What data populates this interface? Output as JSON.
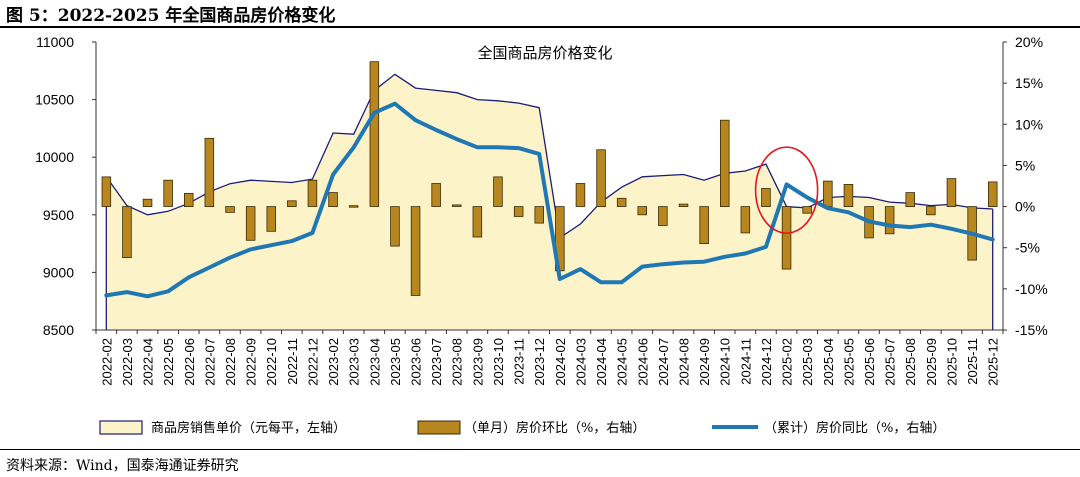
{
  "figure_title": "图 5：2022-2025 年全国商品房价格变化",
  "source": "资料来源：Wind，国泰海通证券研究",
  "colors": {
    "area_fill": "#fdf3c9",
    "area_line": "#1c1c78",
    "bar_fill": "#b8861f",
    "bar_stroke": "#3a2a05",
    "line": "#1f77b4",
    "highlight": "#e8141c"
  },
  "chart_data": {
    "type": "combo",
    "title": "全国商品房价格变化",
    "categories": [
      "2022-02",
      "2022-03",
      "2022-04",
      "2022-05",
      "2022-06",
      "2022-07",
      "2022-08",
      "2022-09",
      "2022-10",
      "2022-11",
      "2022-12",
      "2023-02",
      "2023-03",
      "2023-04",
      "2023-05",
      "2023-06",
      "2023-07",
      "2023-08",
      "2023-09",
      "2023-10",
      "2023-11",
      "2023-12",
      "2024-02",
      "2024-03",
      "2024-04",
      "2024-05",
      "2024-06",
      "2024-07",
      "2024-08",
      "2024-09",
      "2024-10",
      "2024-11",
      "2024-12",
      "2025-02",
      "2025-03",
      "2025-04",
      "2025-05",
      "2025-06",
      "2025-07",
      "2025-08",
      "2025-09",
      "2025-10",
      "2025-11",
      "2025-12"
    ],
    "left_axis": {
      "min": 8500,
      "max": 11000,
      "step": 500,
      "tick_labels": [
        "8500",
        "9000",
        "9500",
        "10000",
        "10500",
        "11000"
      ]
    },
    "right_axis": {
      "min": -15,
      "max": 20,
      "step": 5,
      "tick_labels": [
        "-15%",
        "-10%",
        "-5%",
        "0%",
        "5%",
        "10%",
        "15%",
        "20%"
      ]
    },
    "series": [
      {
        "name": "商品房销售单价（元每平，左轴）",
        "type": "area",
        "axis": "left",
        "values": [
          9830,
          9580,
          9500,
          9530,
          9600,
          9700,
          9770,
          9800,
          9790,
          9780,
          9810,
          10210,
          10200,
          10580,
          10720,
          10600,
          10580,
          10560,
          10500,
          10490,
          10470,
          10430,
          9300,
          9420,
          9610,
          9740,
          9830,
          9840,
          9850,
          9800,
          9860,
          9880,
          9940,
          9570,
          9560,
          9650,
          9660,
          9650,
          9610,
          9600,
          9580,
          9590,
          9560,
          9550
        ]
      },
      {
        "name": "（单月）房价环比（%，右轴）",
        "type": "bar",
        "axis": "right",
        "values": [
          3.6,
          -6.2,
          0.9,
          3.2,
          1.6,
          8.3,
          -0.7,
          -4.1,
          -3.0,
          0.7,
          3.2,
          1.7,
          0.1,
          17.6,
          -4.8,
          -10.8,
          2.8,
          0.2,
          -3.7,
          3.6,
          -1.2,
          -2.0,
          -7.8,
          2.8,
          6.9,
          1.0,
          -1.0,
          -2.3,
          0.3,
          -4.5,
          10.5,
          -3.2,
          2.2,
          -7.6,
          -0.8,
          3.1,
          2.7,
          -3.8,
          -3.3,
          1.7,
          -1.0,
          3.4,
          -6.5,
          3.0
        ]
      },
      {
        "name": "（累计）房价同比（%，右轴）",
        "type": "line",
        "axis": "right",
        "values": [
          -10.8,
          -10.4,
          -10.9,
          -10.3,
          -8.6,
          -7.4,
          -6.2,
          -5.2,
          -4.7,
          -4.2,
          -3.2,
          3.9,
          7.2,
          11.4,
          12.5,
          10.5,
          9.3,
          8.2,
          7.2,
          7.2,
          7.1,
          6.4,
          -8.8,
          -7.6,
          -9.2,
          -9.2,
          -7.3,
          -7.0,
          -6.8,
          -6.7,
          -6.1,
          -5.7,
          -4.9,
          2.7,
          1.1,
          -0.2,
          -0.7,
          -1.8,
          -2.3,
          -2.5,
          -2.2,
          -2.7,
          -3.3,
          -4.0
        ]
      }
    ],
    "highlight": {
      "category": "2025-02",
      "shape": "ellipse"
    },
    "legend": [
      "商品房销售单价（元每平，左轴）",
      "（单月）房价环比（%，右轴）",
      "（累计）房价同比（%，右轴）"
    ],
    "legend_position": "bottom"
  }
}
